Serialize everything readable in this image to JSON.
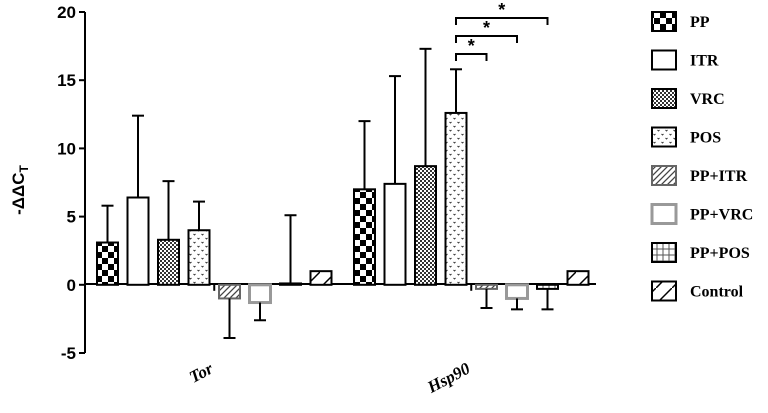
{
  "chart_data": {
    "type": "bar",
    "categories": [
      "Tor",
      "Hsp90"
    ],
    "ylabel": "-ΔΔC",
    "ylabel_sub": "T",
    "ylim": [
      -5,
      20
    ],
    "yticks": [
      -5,
      0,
      5,
      10,
      15,
      20
    ],
    "grid": false,
    "legend_position": "right",
    "series": [
      {
        "name": "PP",
        "pattern": "checker",
        "color": "#000000",
        "values": [
          3.1,
          7.0
        ],
        "errors": [
          2.7,
          5.0
        ]
      },
      {
        "name": "ITR",
        "pattern": "solid-white",
        "color": "#000000",
        "values": [
          6.4,
          7.4
        ],
        "errors": [
          6.0,
          7.9
        ]
      },
      {
        "name": "VRC",
        "pattern": "fine-checker",
        "color": "#000000",
        "values": [
          3.3,
          8.7
        ],
        "errors": [
          4.3,
          8.6
        ]
      },
      {
        "name": "POS",
        "pattern": "dots",
        "color": "#000000",
        "values": [
          4.0,
          12.6
        ],
        "errors": [
          2.1,
          3.2
        ]
      },
      {
        "name": "PP+ITR",
        "pattern": "hatch",
        "color": "#555555",
        "values": [
          -1.0,
          -0.3
        ],
        "errors": [
          2.9,
          1.4
        ]
      },
      {
        "name": "PP+VRC",
        "pattern": "gray-box",
        "color": "#888888",
        "values": [
          -1.3,
          -1.0
        ],
        "errors": [
          1.3,
          0.8
        ]
      },
      {
        "name": "PP+POS",
        "pattern": "grid",
        "color": "#555555",
        "values": [
          0.1,
          -0.3
        ],
        "errors": [
          5.0,
          1.5
        ]
      },
      {
        "name": "Control",
        "pattern": "diag-cross",
        "color": "#000000",
        "values": [
          1.0,
          1.0
        ],
        "errors": [
          0,
          0
        ]
      }
    ],
    "significance": [
      {
        "category": "Hsp90",
        "from_series": "POS",
        "to_series": "PP+ITR",
        "label": "*"
      },
      {
        "category": "Hsp90",
        "from_series": "POS",
        "to_series": "PP+VRC",
        "label": "*"
      },
      {
        "category": "Hsp90",
        "from_series": "POS",
        "to_series": "PP+POS",
        "label": "*"
      }
    ]
  }
}
